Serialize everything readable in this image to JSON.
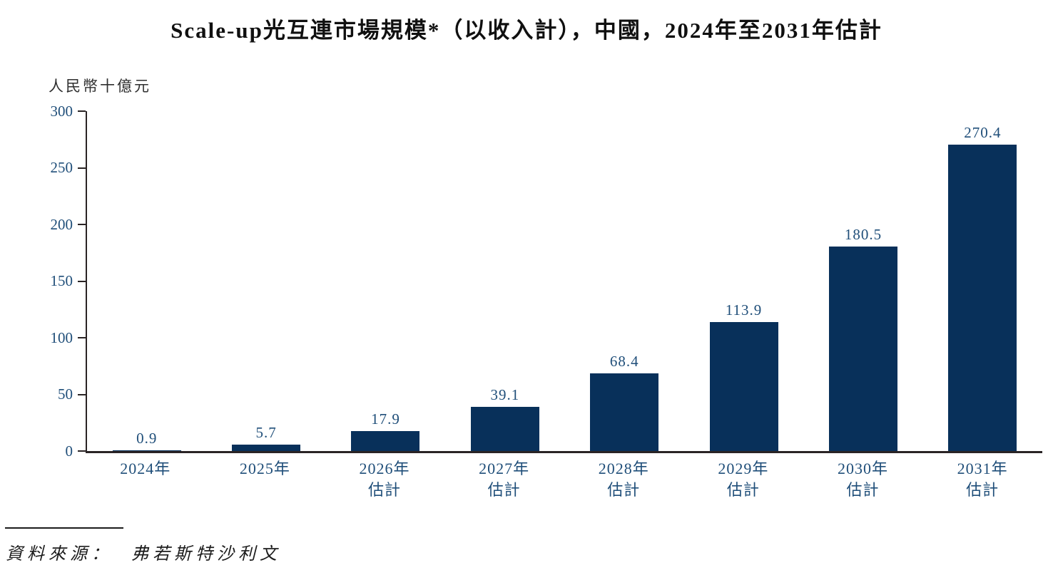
{
  "chart_data": {
    "type": "bar",
    "title": "Scale-up光互連市場規模*（以收入計），中國，2024年至2031年估計",
    "unit_label": "人民幣十億元",
    "categories": [
      {
        "label": "2024年",
        "sublabel": ""
      },
      {
        "label": "2025年",
        "sublabel": ""
      },
      {
        "label": "2026年",
        "sublabel": "估計"
      },
      {
        "label": "2027年",
        "sublabel": "估計"
      },
      {
        "label": "2028年",
        "sublabel": "估計"
      },
      {
        "label": "2029年",
        "sublabel": "估計"
      },
      {
        "label": "2030年",
        "sublabel": "估計"
      },
      {
        "label": "2031年",
        "sublabel": "估計"
      }
    ],
    "values": [
      0.9,
      5.7,
      17.9,
      39.1,
      68.4,
      113.9,
      180.5,
      270.4
    ],
    "value_labels": [
      "0.9",
      "5.7",
      "17.9",
      "39.1",
      "68.4",
      "113.9",
      "180.5",
      "270.4"
    ],
    "xlabel": "",
    "ylabel": "人民幣十億元",
    "ylim": [
      0,
      300
    ],
    "yticks": [
      0,
      50,
      100,
      150,
      200,
      250,
      300
    ],
    "grid": false,
    "legend": false,
    "bar_color": "#08305A",
    "label_color": "#1F4E79",
    "axis_color": "#2A2425"
  },
  "source": {
    "label": "資料來源：",
    "text": "弗若斯特沙利文"
  }
}
